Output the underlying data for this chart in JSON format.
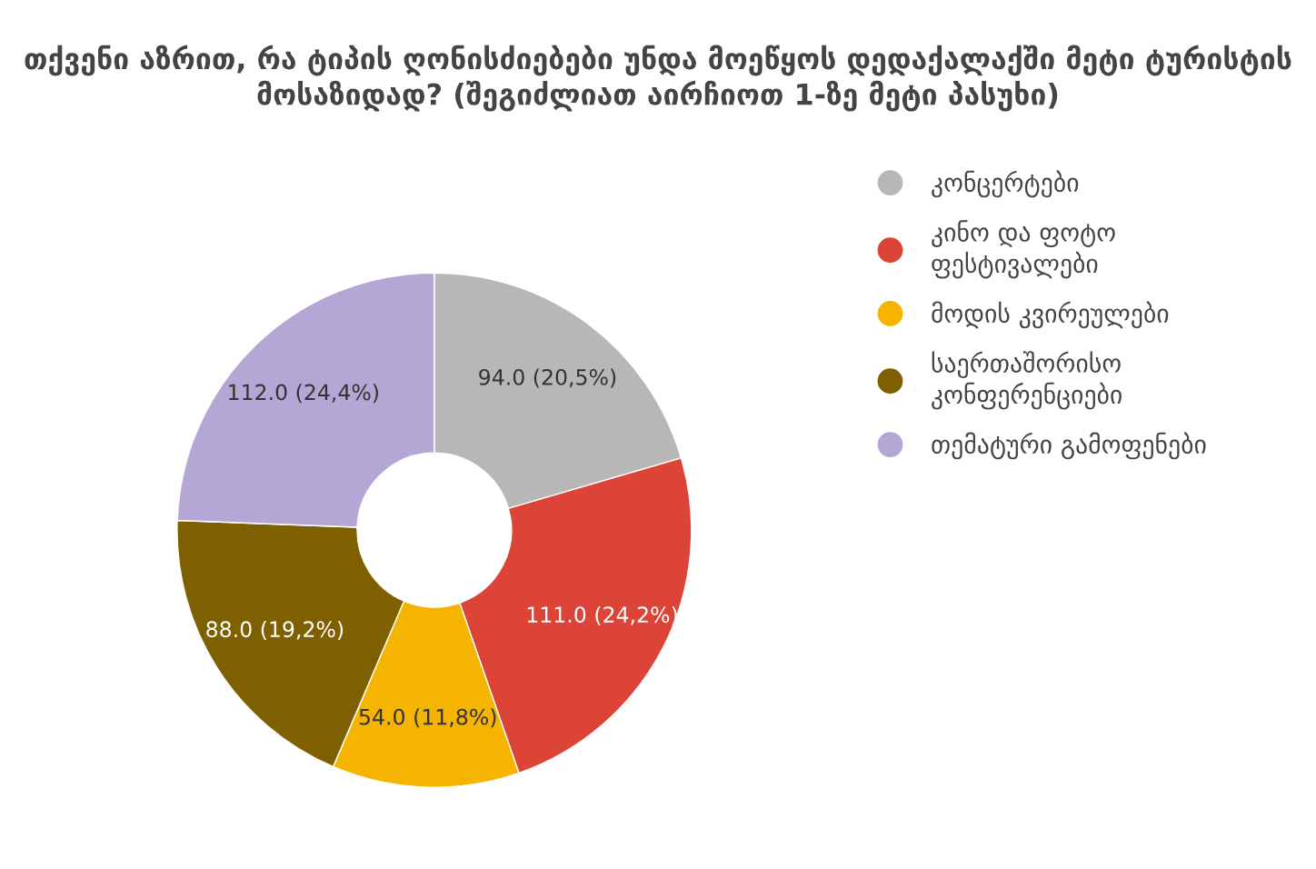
{
  "chart_data": {
    "type": "donut",
    "title": "თქვენი აზრით, რა ტიპის ღონისძიებები უნდა მოეწყოს დედაქალაქში მეტი ტურისტის მოსაზიდად? (შეგიძლიათ აირჩიოთ 1-ზე მეტი პასუხი)",
    "categories": [
      "კონცერტები",
      "კინო და ფოტო ფესტივალები",
      "მოდის კვირეულები",
      "საერთაშორისო კონფერენციები",
      "თემატური გამოფენები"
    ],
    "values": [
      94.0,
      111.0,
      54.0,
      88.0,
      112.0
    ],
    "colors": [
      "#b7b7b7",
      "#db4437",
      "#f4b400",
      "#7f6000",
      "#b4a7d6"
    ],
    "value_labels": [
      "94.0 (20,5%)",
      "111.0 (24,2%)",
      "54.0 (11,8%)",
      "88.0 (19,2%)",
      "112.0 (24,4%)"
    ],
    "legend": "right"
  }
}
